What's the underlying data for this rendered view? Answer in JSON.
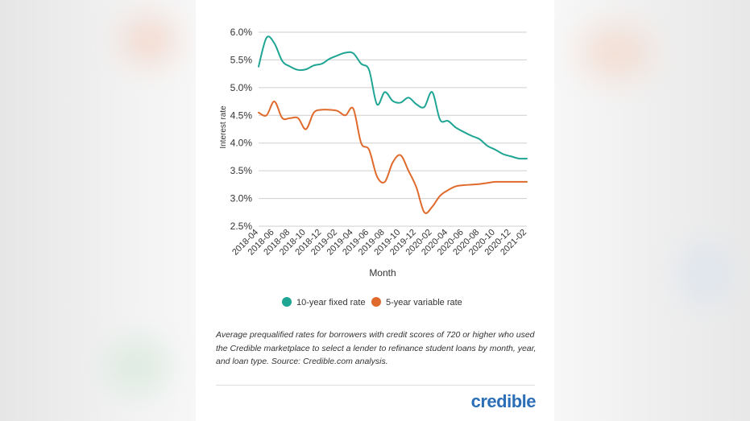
{
  "colors": {
    "fixed": "#1fa594",
    "variable": "#e06a2c",
    "grid": "#cfcfcf",
    "brand": "#2c6fb7"
  },
  "chart_data": {
    "type": "line",
    "title": "",
    "xlabel": "Month",
    "ylabel": "Interest rate",
    "ylim": [
      2.5,
      6.0
    ],
    "yticks": [
      "6.0%",
      "5.5%",
      "5.0%",
      "4.5%",
      "4.0%",
      "3.5%",
      "3.0%",
      "2.5%"
    ],
    "x": [
      "2018-04",
      "2018-05",
      "2018-06",
      "2018-07",
      "2018-08",
      "2018-09",
      "2018-10",
      "2018-11",
      "2018-12",
      "2019-01",
      "2019-02",
      "2019-03",
      "2019-04",
      "2019-05",
      "2019-06",
      "2019-07",
      "2019-08",
      "2019-09",
      "2019-10",
      "2019-11",
      "2019-12",
      "2020-01",
      "2020-02",
      "2020-03",
      "2020-04",
      "2020-05",
      "2020-06",
      "2020-07",
      "2020-08",
      "2020-09",
      "2020-10",
      "2020-11",
      "2020-12",
      "2021-01",
      "2021-02"
    ],
    "xtick_labels": [
      "2018-04",
      "2018-06",
      "2018-08",
      "2018-10",
      "2018-12",
      "2019-02",
      "2019-04",
      "2019-06",
      "2019-08",
      "2019-10",
      "2019-12",
      "2020-02",
      "2020-04",
      "2020-06",
      "2020-08",
      "2020-10",
      "2020-12",
      "2021-02"
    ],
    "grid": true,
    "legend_position": "bottom",
    "series": [
      {
        "name": "10-year fixed rate",
        "values": [
          5.38,
          5.9,
          5.8,
          5.48,
          5.38,
          5.32,
          5.33,
          5.4,
          5.43,
          5.52,
          5.58,
          5.63,
          5.62,
          5.43,
          5.32,
          4.7,
          4.92,
          4.76,
          4.73,
          4.82,
          4.7,
          4.65,
          4.92,
          4.42,
          4.4,
          4.28,
          4.2,
          4.13,
          4.07,
          3.95,
          3.88,
          3.8,
          3.76,
          3.72,
          3.72
        ]
      },
      {
        "name": "5-year variable rate",
        "values": [
          4.55,
          4.5,
          4.75,
          4.45,
          4.45,
          4.45,
          4.25,
          4.55,
          4.6,
          4.6,
          4.58,
          4.5,
          4.62,
          4.0,
          3.88,
          3.4,
          3.3,
          3.65,
          3.78,
          3.5,
          3.2,
          2.75,
          2.85,
          3.05,
          3.15,
          3.22,
          3.24,
          3.25,
          3.26,
          3.28,
          3.3,
          3.3,
          3.3,
          3.3,
          3.3
        ]
      }
    ]
  },
  "caption": "Average prequalified rates for borrowers with credit scores of 720 or higher who used the Credible marketplace to select a lender to refinance student loans by month, year, and loan type. Source: Credible.com analysis.",
  "logo_text": "credible"
}
